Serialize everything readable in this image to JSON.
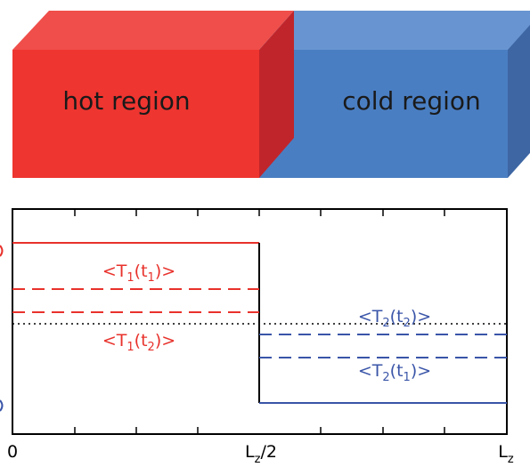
{
  "regions": {
    "hot": {
      "label": "hot region",
      "front_color": "#ee3530",
      "top_color": "#f04e4a",
      "side_color": "#c0252b"
    },
    "cold": {
      "label": "cold region",
      "front_color": "#4a7ec2",
      "top_color": "#6895d1",
      "side_color": "#3d66a3"
    }
  },
  "plot": {
    "x_ticks": [
      {
        "main": "0",
        "sub": "",
        "tail": ""
      },
      {
        "main": "L",
        "sub": "z",
        "tail": "/2"
      },
      {
        "main": "L",
        "sub": "z",
        "tail": ""
      }
    ],
    "labels": {
      "t1_t1": {
        "main": "<T",
        "sub1": "1",
        "mid": "(t",
        "sub2": "1",
        "tail": ")>"
      },
      "t1_t2": {
        "main": "<T",
        "sub1": "1",
        "mid": "(t",
        "sub2": "2",
        "tail": ")>"
      },
      "t2_t2": {
        "main": "<T",
        "sub1": "2",
        "mid": "(t",
        "sub2": "2",
        "tail": ")>"
      },
      "t2_t1": {
        "main": "<T",
        "sub1": "2",
        "mid": "(t",
        "sub2": "1",
        "tail": ")>"
      }
    },
    "colors": {
      "hot": "#e8312b",
      "cold": "#3a55a8",
      "axis": "#000000"
    }
  }
}
